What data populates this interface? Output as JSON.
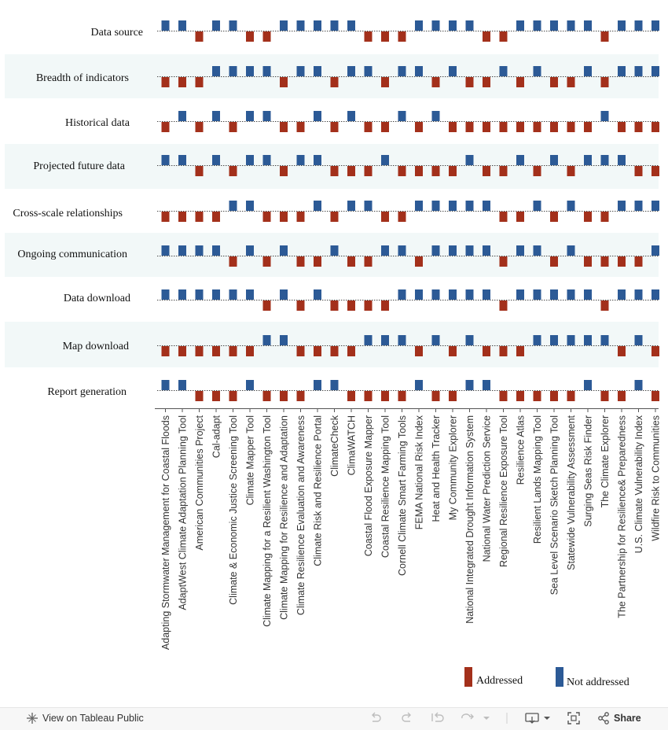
{
  "chart_data": {
    "type": "heatmap",
    "rows": [
      "Data source",
      "Breadth of indicators",
      "Historical data",
      "Projected future data",
      "Cross-scale relationships",
      "Ongoing communication",
      "Data download",
      "Map download",
      "Report generation"
    ],
    "categories": [
      "Adapting Stormwater Management for Coastal Floods",
      "AdaptWest Climate Adaptation Planning Tool",
      "American Communities Project",
      "Cal-adapt",
      "Climate & Economic Justice Screening Tool",
      "Climate Mapper Tool",
      "Climate Mapping for a Resilient Washington Tool",
      "Climate Mapping for Resilience and Adaptation",
      "Climate Resilience Evaluation and Awareness",
      "Climate Risk and Resilience Portal",
      "ClimateCheck",
      "ClimaWATCH",
      "Coastal Flood Exposure Mapper",
      "Coastal Resilience Mapping Tool",
      "Cornell Climate Smart Farming Tools",
      "FEMA National Risk Index",
      "Heat and Health Tracker",
      "My Community Explorer",
      "National Integrated Drought Information System",
      "National Water Prediction Service",
      "Regional Resilience Exposure Tool",
      "Resilience Atlas",
      "Resilient Lands Mapping Tool",
      "Sea Level Scenario Sketch Planning Tool",
      "Statewide Vulnerability Assessment",
      "Surging Seas Risk Finder",
      "The Climate Explorer",
      "The Partnership for Resilience& Preparedness",
      "U.S. Climate Vulnerability Index",
      "Wildfire Risk to Communities"
    ],
    "status_codes": {
      "A": "Addressed",
      "N": "Not addressed"
    },
    "matrix": [
      [
        "N",
        "N",
        "A",
        "N",
        "N",
        "A",
        "A",
        "N",
        "N",
        "N",
        "N",
        "N",
        "A",
        "A",
        "A",
        "N",
        "N",
        "N",
        "N",
        "A",
        "A",
        "N",
        "N",
        "N",
        "N",
        "N",
        "A",
        "N",
        "N",
        "N"
      ],
      [
        "A",
        "A",
        "A",
        "N",
        "N",
        "N",
        "N",
        "A",
        "N",
        "N",
        "A",
        "N",
        "N",
        "A",
        "N",
        "N",
        "A",
        "N",
        "A",
        "A",
        "N",
        "A",
        "N",
        "A",
        "A",
        "N",
        "A",
        "N",
        "N",
        "N"
      ],
      [
        "A",
        "N",
        "A",
        "N",
        "A",
        "N",
        "N",
        "A",
        "A",
        "N",
        "A",
        "N",
        "A",
        "A",
        "N",
        "A",
        "N",
        "A",
        "A",
        "A",
        "A",
        "A",
        "A",
        "A",
        "A",
        "A",
        "N",
        "A",
        "A",
        "A"
      ],
      [
        "N",
        "N",
        "A",
        "N",
        "A",
        "N",
        "N",
        "A",
        "N",
        "N",
        "A",
        "A",
        "A",
        "N",
        "A",
        "A",
        "A",
        "A",
        "N",
        "A",
        "A",
        "N",
        "A",
        "N",
        "A",
        "N",
        "N",
        "N",
        "A",
        "A"
      ],
      [
        "A",
        "A",
        "A",
        "A",
        "N",
        "N",
        "A",
        "A",
        "A",
        "N",
        "A",
        "N",
        "N",
        "A",
        "A",
        "N",
        "N",
        "N",
        "N",
        "N",
        "A",
        "A",
        "N",
        "A",
        "N",
        "A",
        "A",
        "N",
        "N",
        "N"
      ],
      [
        "N",
        "N",
        "N",
        "N",
        "A",
        "N",
        "A",
        "N",
        "A",
        "A",
        "N",
        "A",
        "A",
        "N",
        "N",
        "A",
        "N",
        "N",
        "N",
        "N",
        "A",
        "N",
        "N",
        "A",
        "N",
        "A",
        "A",
        "A",
        "A",
        "N"
      ],
      [
        "N",
        "N",
        "N",
        "N",
        "N",
        "N",
        "A",
        "N",
        "A",
        "N",
        "A",
        "A",
        "A",
        "A",
        "N",
        "N",
        "N",
        "N",
        "N",
        "N",
        "A",
        "N",
        "N",
        "N",
        "N",
        "N",
        "A",
        "N",
        "N",
        "N"
      ],
      [
        "A",
        "A",
        "A",
        "A",
        "A",
        "A",
        "N",
        "N",
        "A",
        "A",
        "A",
        "A",
        "N",
        "N",
        "N",
        "A",
        "N",
        "A",
        "N",
        "A",
        "A",
        "A",
        "N",
        "N",
        "N",
        "N",
        "N",
        "A",
        "N",
        "A"
      ],
      [
        "N",
        "N",
        "A",
        "A",
        "A",
        "N",
        "A",
        "A",
        "A",
        "N",
        "N",
        "A",
        "A",
        "A",
        "A",
        "N",
        "A",
        "A",
        "N",
        "N",
        "A",
        "A",
        "A",
        "A",
        "A",
        "N",
        "A",
        "A",
        "N",
        "A"
      ]
    ],
    "legend": [
      {
        "code": "A",
        "label": "Addressed",
        "color": "#a3301b"
      },
      {
        "code": "N",
        "label": "Not addressed",
        "color": "#2c5a96"
      }
    ],
    "colors": {
      "addressed": "#a3301b",
      "not_addressed": "#2c5a96",
      "band": "#f2f8f8",
      "baseline": "#444444"
    }
  },
  "toolbar": {
    "view_label": "View on Tableau Public",
    "share_label": "Share",
    "icons": [
      "tableau-logo-icon",
      "undo-icon",
      "redo-icon",
      "revert-icon",
      "refresh-icon",
      "download-icon",
      "fullscreen-icon",
      "share-icon"
    ]
  }
}
